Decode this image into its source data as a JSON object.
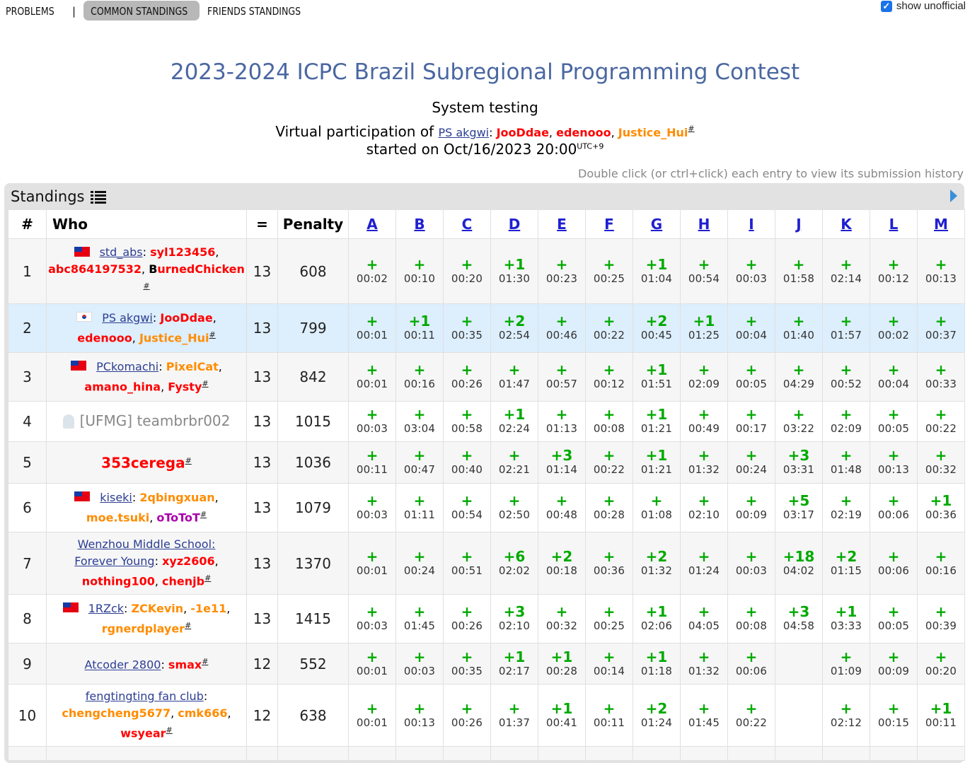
{
  "nav": {
    "problems": "PROBLEMS",
    "separator": "|",
    "common": "COMMON STANDINGS",
    "friends": "FRIENDS STANDINGS"
  },
  "show_unofficial": {
    "label": "show unofficial",
    "checked": true
  },
  "contest": {
    "title": "2023-2024 ICPC Brazil Subregional Programming Contest",
    "status": "System testing",
    "virtual_prefix": "Virtual participation of",
    "virtual_team": "PS akgwi",
    "virtual_members": [
      "JooDdae",
      "edenooo",
      "Justice_Hui"
    ],
    "started_prefix": "started on",
    "started_date": "Oct/16/2023 20:00",
    "timezone": "UTC+9"
  },
  "hint": "Double click (or ctrl+click) each entry to view its submission history",
  "standings": {
    "title": "Standings",
    "headers": {
      "rank": "#",
      "who": "Who",
      "solved": "=",
      "penalty": "Penalty"
    },
    "problems": [
      "A",
      "B",
      "C",
      "D",
      "E",
      "F",
      "G",
      "H",
      "I",
      "J",
      "K",
      "L",
      "M"
    ],
    "rows": [
      {
        "rank": "1",
        "solved": "13",
        "penalty": "608",
        "team": "std_abs",
        "members": [
          "syl123456",
          "abc864197532",
          "BurnedChicken"
        ],
        "cells": [
          [
            "+",
            "00:02"
          ],
          [
            "+",
            "00:10"
          ],
          [
            "+",
            "00:20"
          ],
          [
            "+1",
            "01:30"
          ],
          [
            "+",
            "00:23"
          ],
          [
            "+",
            "00:25"
          ],
          [
            "+1",
            "01:04"
          ],
          [
            "+",
            "00:54"
          ],
          [
            "+",
            "00:03"
          ],
          [
            "+",
            "01:58"
          ],
          [
            "+",
            "02:14"
          ],
          [
            "+",
            "00:12"
          ],
          [
            "+",
            "00:13"
          ]
        ]
      },
      {
        "rank": "2",
        "solved": "13",
        "penalty": "799",
        "team": "PS akgwi",
        "members": [
          "JooDdae",
          "edenooo",
          "Justice_Hui"
        ],
        "cells": [
          [
            "+",
            "00:01"
          ],
          [
            "+1",
            "00:11"
          ],
          [
            "+",
            "00:35"
          ],
          [
            "+2",
            "02:54"
          ],
          [
            "+",
            "00:46"
          ],
          [
            "+",
            "00:22"
          ],
          [
            "+2",
            "00:45"
          ],
          [
            "+1",
            "01:25"
          ],
          [
            "+",
            "00:04"
          ],
          [
            "+",
            "01:40"
          ],
          [
            "+",
            "01:57"
          ],
          [
            "+",
            "00:02"
          ],
          [
            "+",
            "00:37"
          ]
        ]
      },
      {
        "rank": "3",
        "solved": "13",
        "penalty": "842",
        "team": "PCkomachi",
        "members": [
          "PixelCat",
          "amano_hina",
          "Fysty"
        ],
        "cells": [
          [
            "+",
            "00:01"
          ],
          [
            "+",
            "00:16"
          ],
          [
            "+",
            "00:26"
          ],
          [
            "+",
            "01:47"
          ],
          [
            "+",
            "00:57"
          ],
          [
            "+",
            "00:12"
          ],
          [
            "+1",
            "01:51"
          ],
          [
            "+",
            "02:09"
          ],
          [
            "+",
            "00:05"
          ],
          [
            "+",
            "04:29"
          ],
          [
            "+",
            "00:52"
          ],
          [
            "+",
            "00:04"
          ],
          [
            "+",
            "00:33"
          ]
        ]
      },
      {
        "rank": "4",
        "solved": "13",
        "penalty": "1015",
        "team": "[UFMG] teambrbr002",
        "members": [],
        "cells": [
          [
            "+",
            "00:03"
          ],
          [
            "+",
            "03:04"
          ],
          [
            "+",
            "00:58"
          ],
          [
            "+1",
            "02:24"
          ],
          [
            "+",
            "01:13"
          ],
          [
            "+",
            "00:08"
          ],
          [
            "+1",
            "01:21"
          ],
          [
            "+",
            "00:49"
          ],
          [
            "+",
            "00:17"
          ],
          [
            "+",
            "03:22"
          ],
          [
            "+",
            "02:09"
          ],
          [
            "+",
            "00:05"
          ],
          [
            "+",
            "00:22"
          ]
        ]
      },
      {
        "rank": "5",
        "solved": "13",
        "penalty": "1036",
        "team": "353cerega",
        "members": [],
        "cells": [
          [
            "+",
            "00:11"
          ],
          [
            "+",
            "00:47"
          ],
          [
            "+",
            "00:40"
          ],
          [
            "+",
            "02:21"
          ],
          [
            "+3",
            "01:14"
          ],
          [
            "+",
            "00:22"
          ],
          [
            "+1",
            "01:21"
          ],
          [
            "+",
            "01:32"
          ],
          [
            "+",
            "00:24"
          ],
          [
            "+3",
            "03:31"
          ],
          [
            "+",
            "01:48"
          ],
          [
            "+",
            "00:13"
          ],
          [
            "+",
            "00:32"
          ]
        ]
      },
      {
        "rank": "6",
        "solved": "13",
        "penalty": "1079",
        "team": "kiseki",
        "members": [
          "2qbingxuan",
          "moe.tsuki",
          "oToToT"
        ],
        "cells": [
          [
            "+",
            "00:03"
          ],
          [
            "+",
            "01:11"
          ],
          [
            "+",
            "00:54"
          ],
          [
            "+",
            "02:50"
          ],
          [
            "+",
            "00:48"
          ],
          [
            "+",
            "00:28"
          ],
          [
            "+",
            "01:08"
          ],
          [
            "+",
            "02:10"
          ],
          [
            "+",
            "00:09"
          ],
          [
            "+5",
            "03:17"
          ],
          [
            "+",
            "02:19"
          ],
          [
            "+",
            "00:06"
          ],
          [
            "+1",
            "00:36"
          ]
        ]
      },
      {
        "rank": "7",
        "solved": "13",
        "penalty": "1370",
        "team_line1": "Wenzhou Middle School:",
        "team": "Forever Young",
        "members": [
          "xyz2606",
          "nothing100",
          "chenjb"
        ],
        "cells": [
          [
            "+",
            "00:01"
          ],
          [
            "+",
            "00:24"
          ],
          [
            "+",
            "00:51"
          ],
          [
            "+6",
            "02:02"
          ],
          [
            "+2",
            "00:18"
          ],
          [
            "+",
            "00:36"
          ],
          [
            "+2",
            "01:32"
          ],
          [
            "+",
            "01:24"
          ],
          [
            "+",
            "00:03"
          ],
          [
            "+18",
            "04:02"
          ],
          [
            "+2",
            "01:15"
          ],
          [
            "+",
            "00:06"
          ],
          [
            "+",
            "00:16"
          ]
        ]
      },
      {
        "rank": "8",
        "solved": "13",
        "penalty": "1415",
        "team": "1RZck",
        "members": [
          "ZCKevin",
          "-1e11",
          "rgnerdplayer"
        ],
        "cells": [
          [
            "+",
            "00:03"
          ],
          [
            "+",
            "01:45"
          ],
          [
            "+",
            "00:26"
          ],
          [
            "+3",
            "02:10"
          ],
          [
            "+",
            "00:32"
          ],
          [
            "+",
            "00:25"
          ],
          [
            "+1",
            "02:06"
          ],
          [
            "+",
            "04:05"
          ],
          [
            "+",
            "00:08"
          ],
          [
            "+3",
            "04:58"
          ],
          [
            "+1",
            "03:33"
          ],
          [
            "+",
            "00:05"
          ],
          [
            "+",
            "00:39"
          ]
        ]
      },
      {
        "rank": "9",
        "solved": "12",
        "penalty": "552",
        "team": "Atcoder 2800",
        "members": [
          "smax"
        ],
        "cells": [
          [
            "+",
            "00:01"
          ],
          [
            "+",
            "00:03"
          ],
          [
            "+",
            "00:35"
          ],
          [
            "+1",
            "02:17"
          ],
          [
            "+1",
            "00:28"
          ],
          [
            "+",
            "00:14"
          ],
          [
            "+1",
            "01:18"
          ],
          [
            "+",
            "01:32"
          ],
          [
            "+",
            "00:06"
          ],
          [
            "",
            ""
          ],
          [
            "+",
            "01:09"
          ],
          [
            "+",
            "00:09"
          ],
          [
            "+",
            "00:20"
          ]
        ]
      },
      {
        "rank": "10",
        "solved": "12",
        "penalty": "638",
        "team": "fengtingting fan club",
        "members": [
          "chengcheng5677",
          "cmk666",
          "wsyear"
        ],
        "cells": [
          [
            "+",
            "00:01"
          ],
          [
            "+",
            "00:13"
          ],
          [
            "+",
            "00:26"
          ],
          [
            "+",
            "01:37"
          ],
          [
            "+1",
            "00:41"
          ],
          [
            "+",
            "00:11"
          ],
          [
            "+2",
            "01:24"
          ],
          [
            "+",
            "01:45"
          ],
          [
            "+",
            "00:22"
          ],
          [
            "",
            ""
          ],
          [
            "+",
            "02:12"
          ],
          [
            "+",
            "00:15"
          ],
          [
            "+1",
            "00:11"
          ]
        ]
      }
    ]
  },
  "colors": {
    "title": "#4a67a1",
    "accepted": "#00aa00",
    "self_row": "#ddeefc",
    "red_rank": "#ff0000",
    "orange_rank": "#ff8c00",
    "violet_rank": "#aa00aa"
  },
  "icons": {
    "list": "list-icon",
    "arrow": "arrow-right-icon",
    "flag_tw": "taiwan-flag-icon",
    "flag_kr": "korea-flag-icon",
    "ghost": "ghost-icon",
    "checkbox": "checkbox-icon"
  }
}
